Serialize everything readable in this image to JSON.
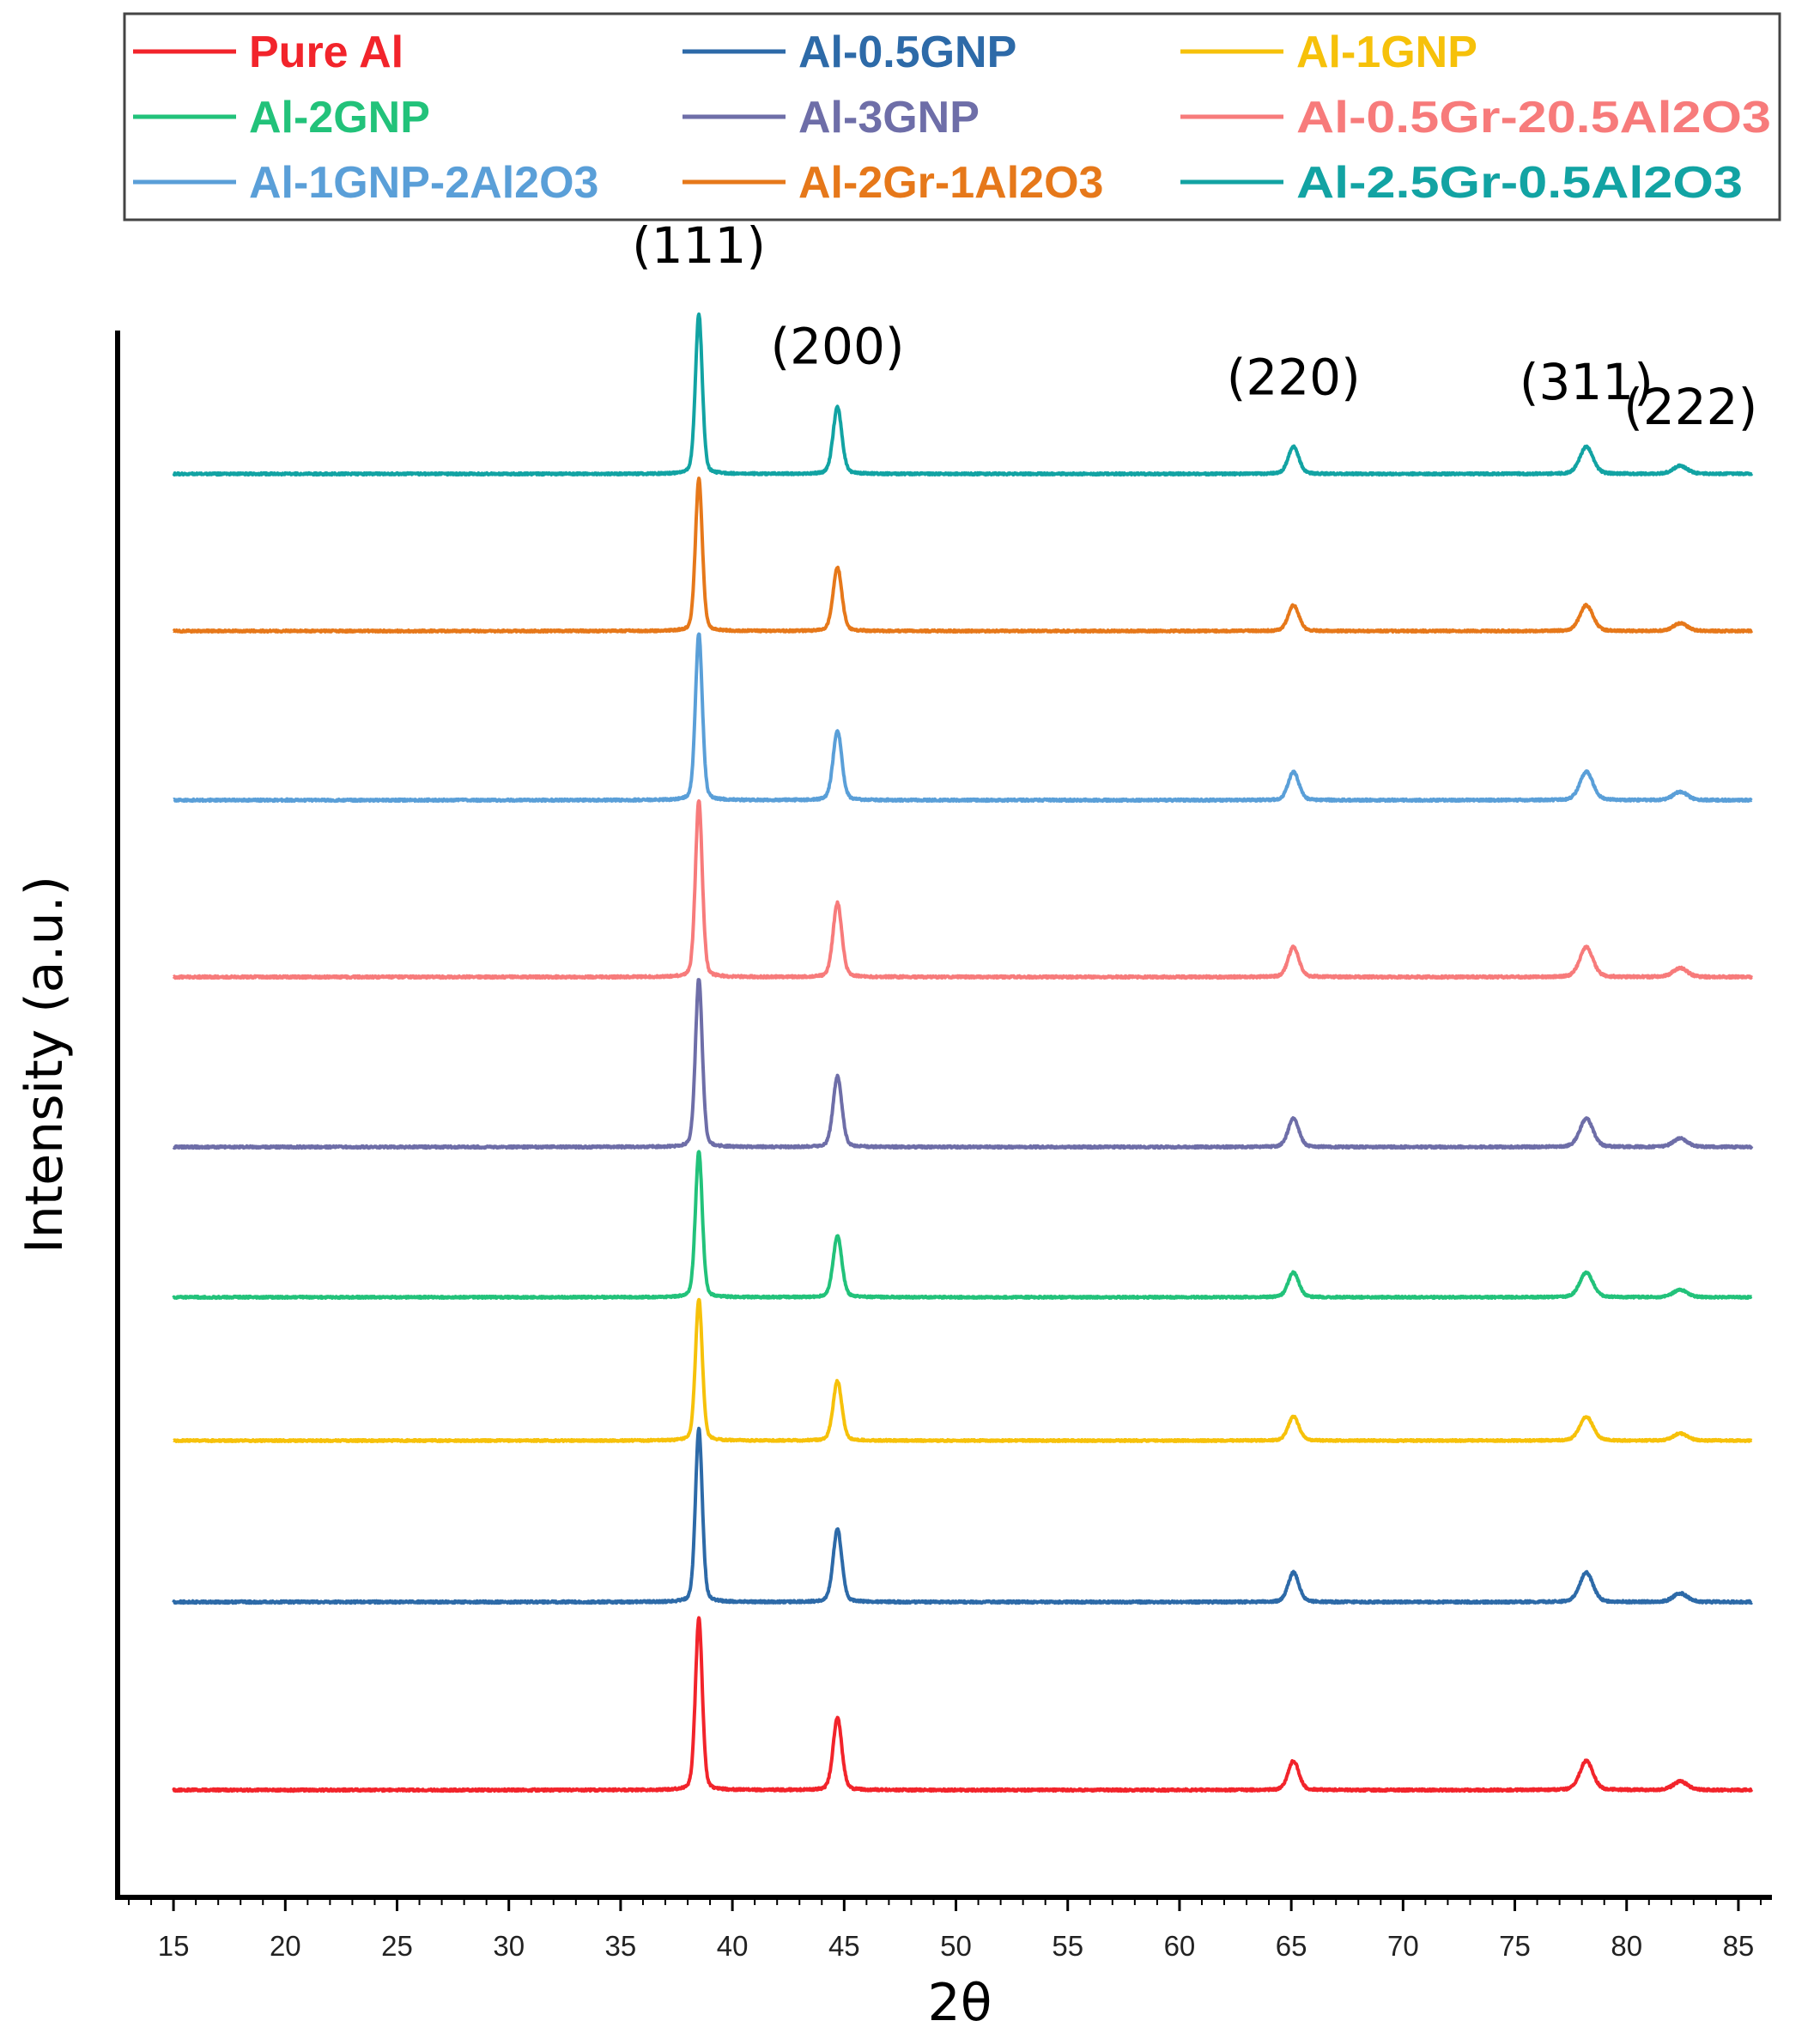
{
  "chart_data": {
    "type": "line",
    "xlabel": "2θ",
    "ylabel": "Intensity (a.u.)",
    "xlim": [
      12.5,
      86.5
    ],
    "xticks": [
      15,
      20,
      25,
      30,
      35,
      40,
      45,
      50,
      55,
      60,
      65,
      70,
      75,
      80,
      85
    ],
    "legend": {
      "placement": "top",
      "columns": 3
    },
    "peaks": [
      {
        "label": "(111)",
        "position": 38.5,
        "intensity": 1.0,
        "width": 0.22
      },
      {
        "label": "(200)",
        "position": 44.7,
        "intensity": 0.42,
        "width": 0.28
      },
      {
        "label": "(220)",
        "position": 65.1,
        "intensity": 0.17,
        "width": 0.34
      },
      {
        "label": "(311)",
        "position": 78.2,
        "intensity": 0.17,
        "width": 0.42
      },
      {
        "label": "(222)",
        "position": 82.4,
        "intensity": 0.05,
        "width": 0.45
      }
    ],
    "series": [
      {
        "name": "Pure Al",
        "color": "#f2242b",
        "stack_order": 0
      },
      {
        "name": "Al-0.5GNP",
        "color": "#2d6aa8",
        "stack_order": 1
      },
      {
        "name": "Al-1GNP",
        "color": "#f6c10a",
        "stack_order": 2
      },
      {
        "name": "Al-2GNP",
        "color": "#22c27a",
        "stack_order": 3
      },
      {
        "name": "Al-3GNP",
        "color": "#6e6ea8",
        "stack_order": 4
      },
      {
        "name": "Al-0.5Gr-20.5Al2O3",
        "color": "#f77b7b",
        "stack_order": 5
      },
      {
        "name": "Al-1GNP-2Al2O3",
        "color": "#5a9fd8",
        "stack_order": 6
      },
      {
        "name": "Al-2Gr-1Al2O3",
        "color": "#e6781a",
        "stack_order": 7
      },
      {
        "name": "Al-2.5Gr-0.5Al2O3",
        "color": "#12a3a3",
        "stack_order": 8
      }
    ]
  }
}
